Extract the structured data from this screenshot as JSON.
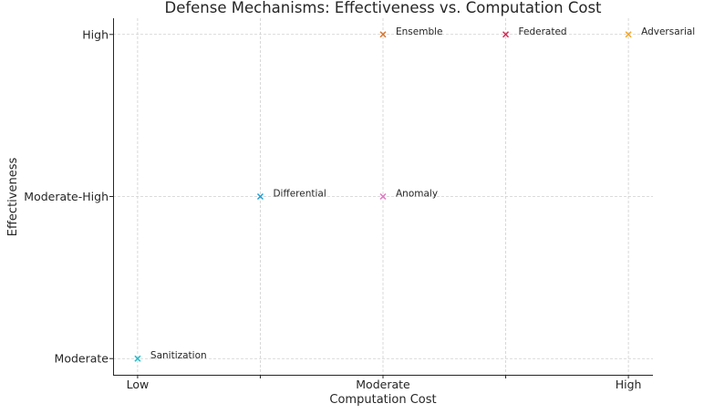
{
  "chart_data": {
    "type": "scatter",
    "title": "Defense Mechanisms: Effectiveness vs. Computation Cost",
    "xlabel": "Computation Cost",
    "ylabel": "Effectiveness",
    "x_ticks": [
      {
        "value": 0,
        "label": "Low"
      },
      {
        "value": 1,
        "label": ""
      },
      {
        "value": 2,
        "label": "Moderate"
      },
      {
        "value": 3,
        "label": ""
      },
      {
        "value": 4,
        "label": "High"
      }
    ],
    "y_ticks": [
      {
        "value": 0,
        "label": "Moderate"
      },
      {
        "value": 1,
        "label": "Moderate-High"
      },
      {
        "value": 2,
        "label": "High"
      }
    ],
    "xlim": [
      -0.2,
      4.2
    ],
    "ylim": [
      -0.1,
      2.1
    ],
    "grid": true,
    "marker": "x",
    "points": [
      {
        "name": "Sanitization",
        "x": 0,
        "y": 0,
        "color": "#17becf"
      },
      {
        "name": "Differential",
        "x": 1,
        "y": 1,
        "color": "#1f9fd6"
      },
      {
        "name": "Anomaly",
        "x": 2,
        "y": 1,
        "color": "#e377c2"
      },
      {
        "name": "Ensemble",
        "x": 2,
        "y": 2,
        "color": "#d9742b"
      },
      {
        "name": "Federated",
        "x": 3,
        "y": 2,
        "color": "#d62754"
      },
      {
        "name": "Adversarial",
        "x": 4,
        "y": 2,
        "color": "#f5a623"
      }
    ]
  }
}
